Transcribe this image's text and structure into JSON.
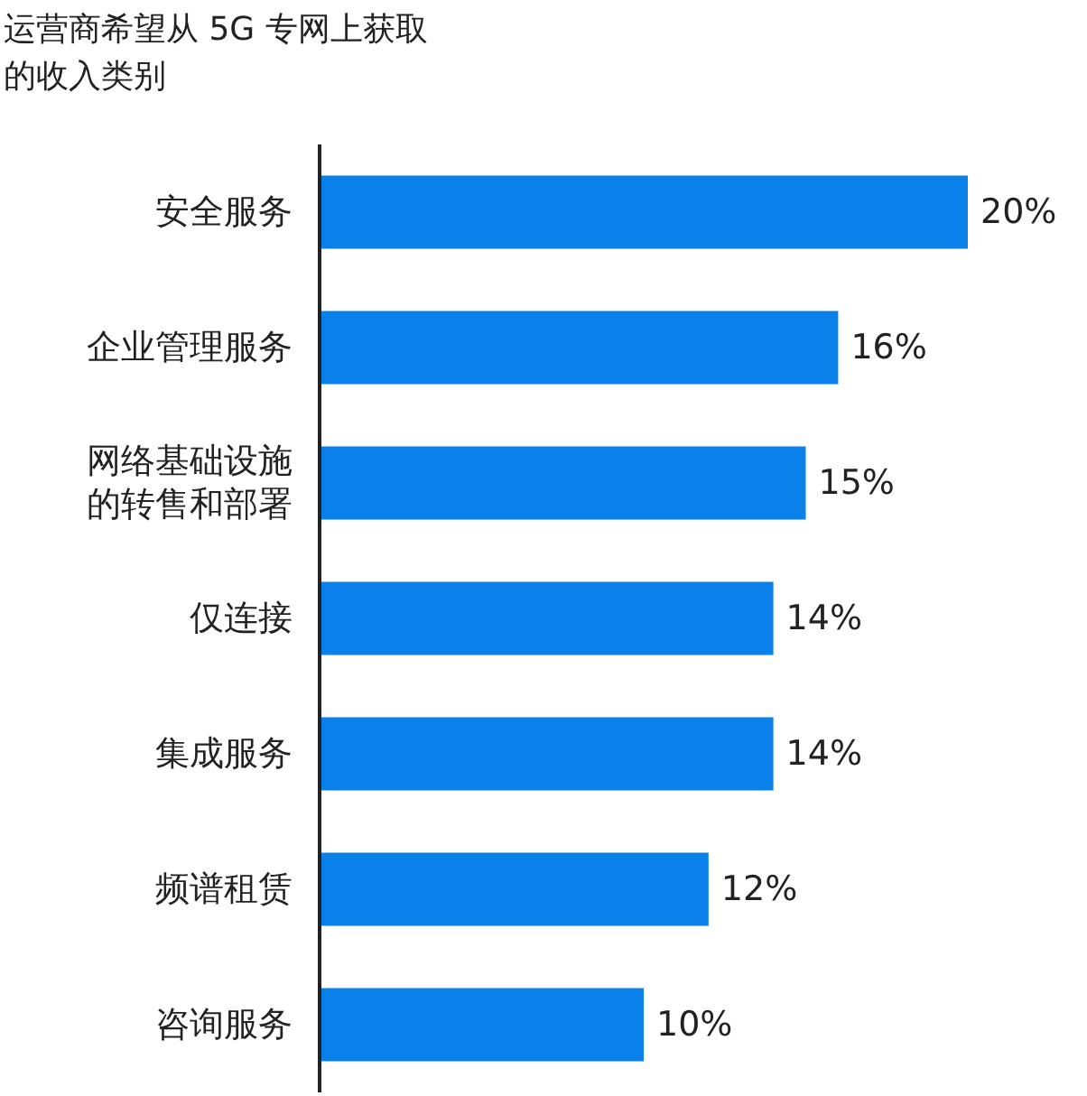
{
  "chart_data": {
    "type": "bar",
    "orientation": "horizontal",
    "title": "运营商希望从 5G 专网上获取的收入类别",
    "categories": [
      "安全服务",
      "企业管理服务",
      "网络基础设施的转售和部署",
      "仅连接",
      "集成服务",
      "频谱租赁",
      "咨询服务"
    ],
    "values": [
      20,
      16,
      15,
      14,
      14,
      12,
      10
    ],
    "value_labels": [
      "20%",
      "16%",
      "15%",
      "14%",
      "14%",
      "12%",
      "10%"
    ],
    "color": "#0a80ea"
  }
}
